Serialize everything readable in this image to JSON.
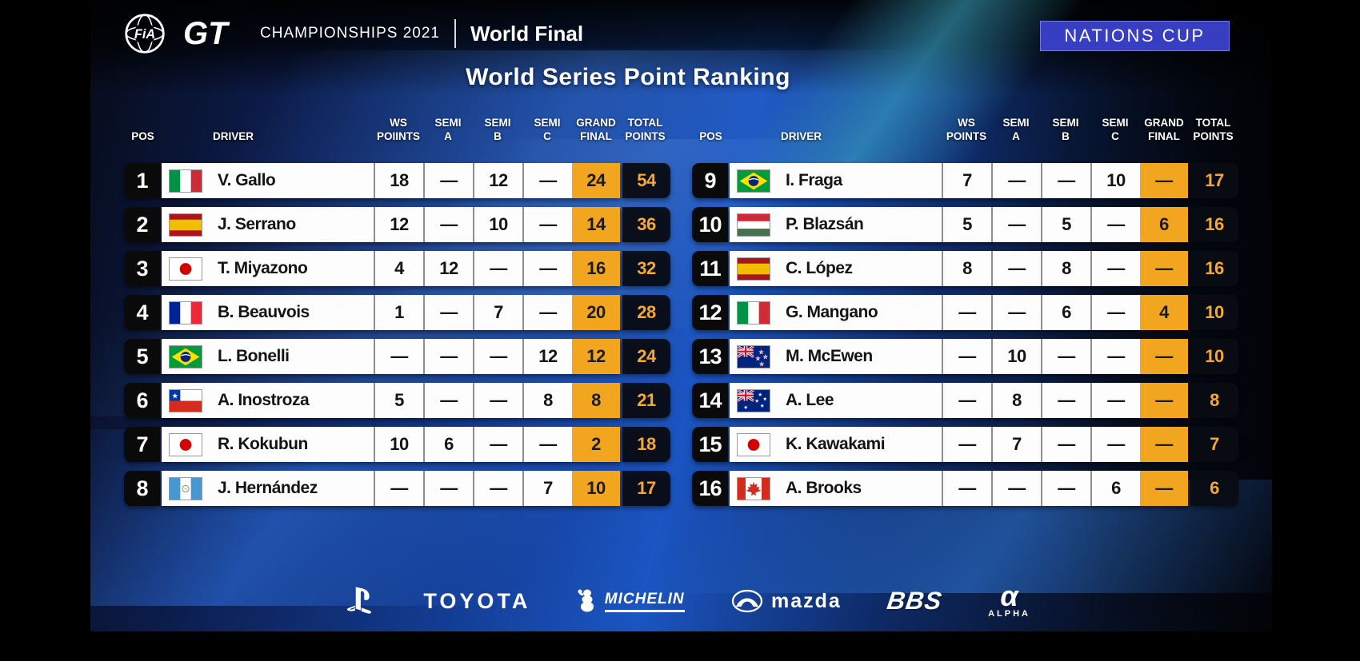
{
  "header": {
    "fia": "FiA",
    "gt": "GT",
    "championships": "CHAMPIONSHIPS 2021",
    "event": "World Final",
    "badge": "NATIONS CUP"
  },
  "title": "World Series Point Ranking",
  "colors": {
    "accent_orange": "#F2A51F",
    "total_text_orange": "#F5A832",
    "badge_blue": "#383EC1",
    "background_blue": "#1b55c2",
    "row_white": "#FDFDFD"
  },
  "tables": [
    {
      "side": "left",
      "columns": {
        "pos": "POS",
        "driver": "DRIVER",
        "ws": "WS\nPOIINTS",
        "semi_a": "SEMI\nA",
        "semi_b": "SEMI\nB",
        "semi_c": "SEMI\nC",
        "grand_final": "GRAND\nFINAL",
        "total": "TOTAL\nPOINTS"
      },
      "rows": [
        {
          "pos": "1",
          "country": "italy",
          "driver": "V. Gallo",
          "ws": "18",
          "semi_a": "—",
          "semi_b": "12",
          "semi_c": "—",
          "grand_final": "24",
          "total": "54"
        },
        {
          "pos": "2",
          "country": "spain",
          "driver": "J. Serrano",
          "ws": "12",
          "semi_a": "—",
          "semi_b": "10",
          "semi_c": "—",
          "grand_final": "14",
          "total": "36"
        },
        {
          "pos": "3",
          "country": "japan",
          "driver": "T. Miyazono",
          "ws": "4",
          "semi_a": "12",
          "semi_b": "—",
          "semi_c": "—",
          "grand_final": "16",
          "total": "32"
        },
        {
          "pos": "4",
          "country": "france",
          "driver": "B. Beauvois",
          "ws": "1",
          "semi_a": "—",
          "semi_b": "7",
          "semi_c": "—",
          "grand_final": "20",
          "total": "28"
        },
        {
          "pos": "5",
          "country": "brazil",
          "driver": "L. Bonelli",
          "ws": "—",
          "semi_a": "—",
          "semi_b": "—",
          "semi_c": "12",
          "grand_final": "12",
          "total": "24"
        },
        {
          "pos": "6",
          "country": "chile",
          "driver": "A. Inostroza",
          "ws": "5",
          "semi_a": "—",
          "semi_b": "—",
          "semi_c": "8",
          "grand_final": "8",
          "total": "21"
        },
        {
          "pos": "7",
          "country": "japan",
          "driver": "R. Kokubun",
          "ws": "10",
          "semi_a": "6",
          "semi_b": "—",
          "semi_c": "—",
          "grand_final": "2",
          "total": "18"
        },
        {
          "pos": "8",
          "country": "guatemala",
          "driver": "J. Hernández",
          "ws": "—",
          "semi_a": "—",
          "semi_b": "—",
          "semi_c": "7",
          "grand_final": "10",
          "total": "17"
        }
      ]
    },
    {
      "side": "right",
      "columns": {
        "pos": "POS",
        "driver": "DRIVER",
        "ws": "WS\nPOINTS",
        "semi_a": "SEMI\nA",
        "semi_b": "SEMI\nB",
        "semi_c": "SEMI\nC",
        "grand_final": "GRAND\nFINAL",
        "total": "TOTAL\nPOINTS"
      },
      "rows": [
        {
          "pos": "9",
          "country": "brazil",
          "driver": "I. Fraga",
          "ws": "7",
          "semi_a": "—",
          "semi_b": "—",
          "semi_c": "10",
          "grand_final": "—",
          "total": "17"
        },
        {
          "pos": "10",
          "country": "hungary",
          "driver": "P. Blazsán",
          "ws": "5",
          "semi_a": "—",
          "semi_b": "5",
          "semi_c": "—",
          "grand_final": "6",
          "total": "16"
        },
        {
          "pos": "11",
          "country": "spain",
          "driver": "C. López",
          "ws": "8",
          "semi_a": "—",
          "semi_b": "8",
          "semi_c": "—",
          "grand_final": "—",
          "total": "16"
        },
        {
          "pos": "12",
          "country": "italy",
          "driver": "G. Mangano",
          "ws": "—",
          "semi_a": "—",
          "semi_b": "6",
          "semi_c": "—",
          "grand_final": "4",
          "total": "10"
        },
        {
          "pos": "13",
          "country": "new-zealand",
          "driver": "M. McEwen",
          "ws": "—",
          "semi_a": "10",
          "semi_b": "—",
          "semi_c": "—",
          "grand_final": "—",
          "total": "10"
        },
        {
          "pos": "14",
          "country": "australia",
          "driver": "A. Lee",
          "ws": "—",
          "semi_a": "8",
          "semi_b": "—",
          "semi_c": "—",
          "grand_final": "—",
          "total": "8"
        },
        {
          "pos": "15",
          "country": "japan",
          "driver": "K. Kawakami",
          "ws": "—",
          "semi_a": "7",
          "semi_b": "—",
          "semi_c": "—",
          "grand_final": "—",
          "total": "7"
        },
        {
          "pos": "16",
          "country": "canada",
          "driver": "A. Brooks",
          "ws": "—",
          "semi_a": "—",
          "semi_b": "—",
          "semi_c": "6",
          "grand_final": "—",
          "total": "6"
        }
      ]
    }
  ],
  "sponsors": [
    {
      "name": "playstation",
      "label": "PlayStation"
    },
    {
      "name": "toyota",
      "label": "TOYOTA"
    },
    {
      "name": "michelin",
      "label": "MICHELIN"
    },
    {
      "name": "mazda",
      "label": "mazda"
    },
    {
      "name": "bbs",
      "label": "BBS"
    },
    {
      "name": "alpha",
      "label": "ALPHA",
      "symbol": "α"
    }
  ]
}
